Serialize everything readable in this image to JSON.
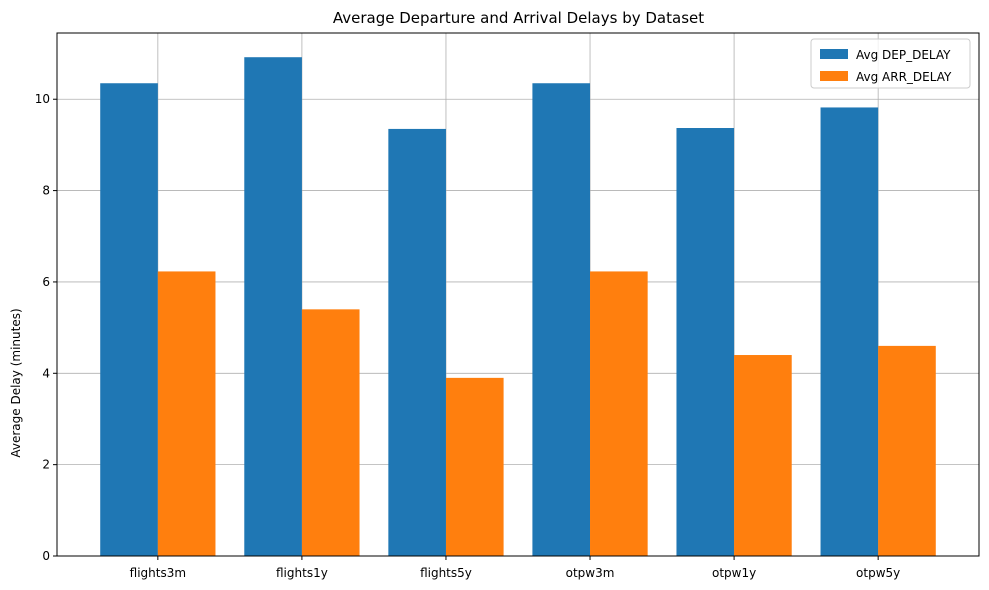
{
  "chart_data": {
    "type": "bar",
    "title": "Average Departure and Arrival Delays by Dataset",
    "xlabel": "",
    "ylabel": "Average Delay (minutes)",
    "categories": [
      "flights3m",
      "flights1y",
      "flights5y",
      "otpw3m",
      "otpw1y",
      "otpw5y"
    ],
    "series": [
      {
        "name": "Avg DEP_DELAY",
        "color": "#1f77b4",
        "values": [
          10.35,
          10.92,
          9.35,
          10.35,
          9.37,
          9.82
        ]
      },
      {
        "name": "Avg ARR_DELAY",
        "color": "#ff7f0e",
        "values": [
          6.23,
          5.4,
          3.9,
          6.23,
          4.4,
          4.6
        ]
      }
    ],
    "ylim": [
      0,
      11.45
    ],
    "yticks": [
      0,
      2,
      4,
      6,
      8,
      10
    ],
    "grid": true,
    "legend_position": "top-right"
  }
}
